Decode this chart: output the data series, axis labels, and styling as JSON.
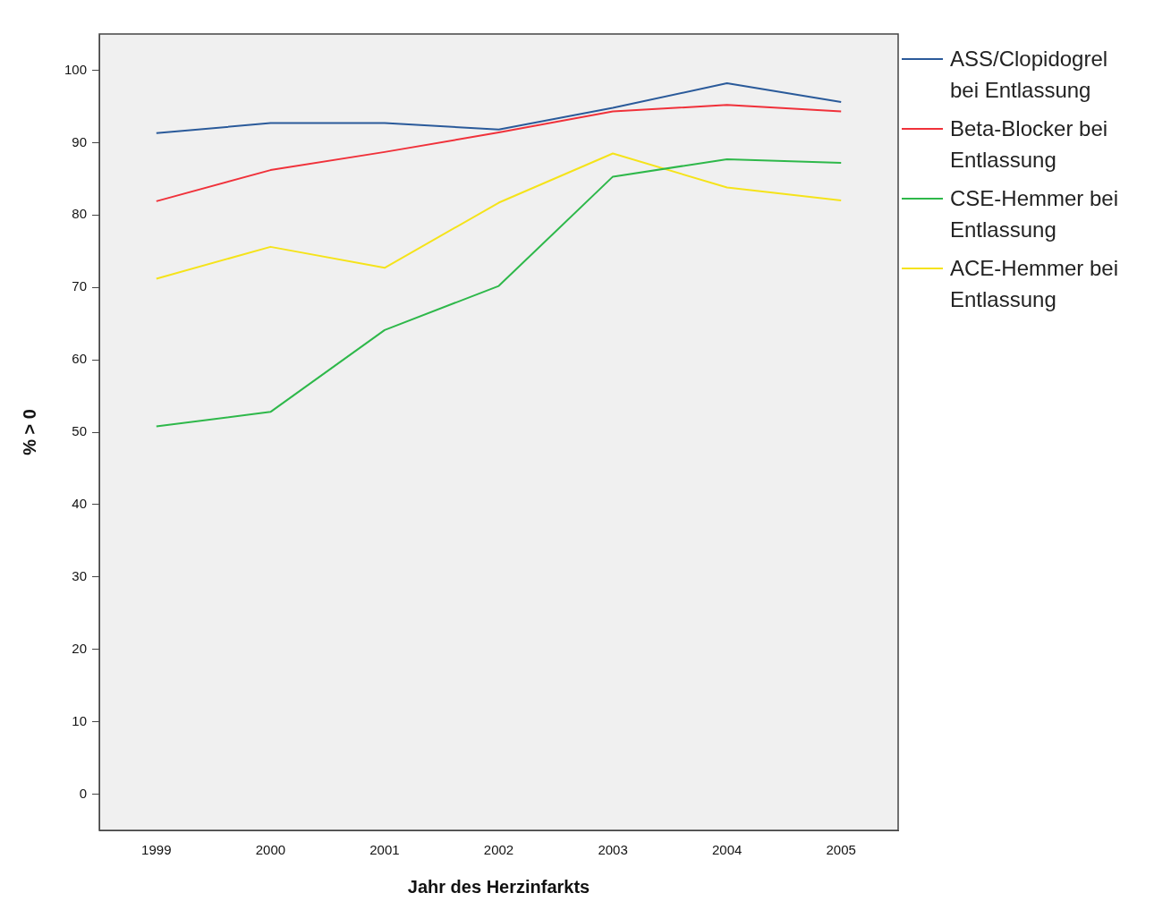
{
  "chart_data": {
    "type": "line",
    "xlabel": "Jahr des Herzinfarkts",
    "ylabel": "% > 0",
    "categories": [
      "1999",
      "2000",
      "2001",
      "2002",
      "2003",
      "2004",
      "2005"
    ],
    "series": [
      {
        "name": "ASS/Clopidogrel bei Entlassung",
        "color": "#2a5a9a",
        "values": [
          91.3,
          92.7,
          92.7,
          91.8,
          94.8,
          98.2,
          95.6
        ]
      },
      {
        "name": "Beta-Blocker bei Entlassung",
        "color": "#f0313a",
        "values": [
          81.9,
          86.2,
          88.7,
          91.4,
          94.3,
          95.2,
          94.3
        ]
      },
      {
        "name": "CSE-Hemmer bei Entlassung",
        "color": "#2eb84a",
        "values": [
          50.8,
          52.8,
          64.1,
          70.2,
          85.3,
          87.7,
          87.2
        ]
      },
      {
        "name": "ACE-Hemmer bei Entlassung",
        "color": "#f5e31a",
        "values": [
          71.2,
          75.6,
          72.7,
          81.7,
          88.5,
          83.8,
          82.0
        ]
      }
    ],
    "ylim": [
      -5,
      105
    ],
    "yticks": [
      0,
      10,
      20,
      30,
      40,
      50,
      60,
      70,
      80,
      90,
      100
    ],
    "legend": "right",
    "marker": "none",
    "line_style": "solid"
  }
}
